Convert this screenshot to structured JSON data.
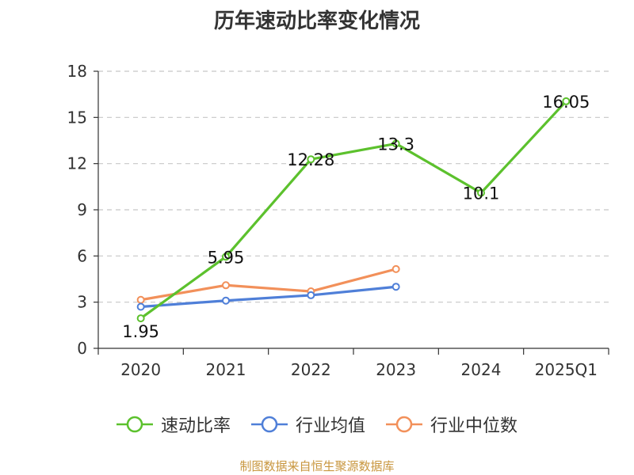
{
  "chart_data": {
    "type": "line",
    "title": "历年速动比率变化情况",
    "categories": [
      "2020",
      "2021",
      "2022",
      "2023",
      "2024",
      "2025Q1"
    ],
    "ylim": [
      0,
      18
    ],
    "yticks": [
      0,
      3,
      6,
      9,
      12,
      15,
      18
    ],
    "grid": true,
    "legend_position": "bottom",
    "series": [
      {
        "name": "速动比率",
        "color": "#5cc12d",
        "values": [
          1.95,
          5.95,
          12.28,
          13.3,
          10.1,
          16.05
        ],
        "labels": [
          "1.95",
          "5.95",
          "12.28",
          "13.3",
          "10.1",
          "16.05"
        ]
      },
      {
        "name": "行业均值",
        "color": "#4f7fd8",
        "values": [
          2.7,
          3.1,
          3.45,
          4.0,
          null,
          null
        ]
      },
      {
        "name": "行业中位数",
        "color": "#f2905a",
        "values": [
          3.15,
          4.1,
          3.7,
          5.15,
          null,
          null
        ]
      }
    ]
  },
  "footer": {
    "source": "制图数据来自恒生聚源数据库"
  }
}
